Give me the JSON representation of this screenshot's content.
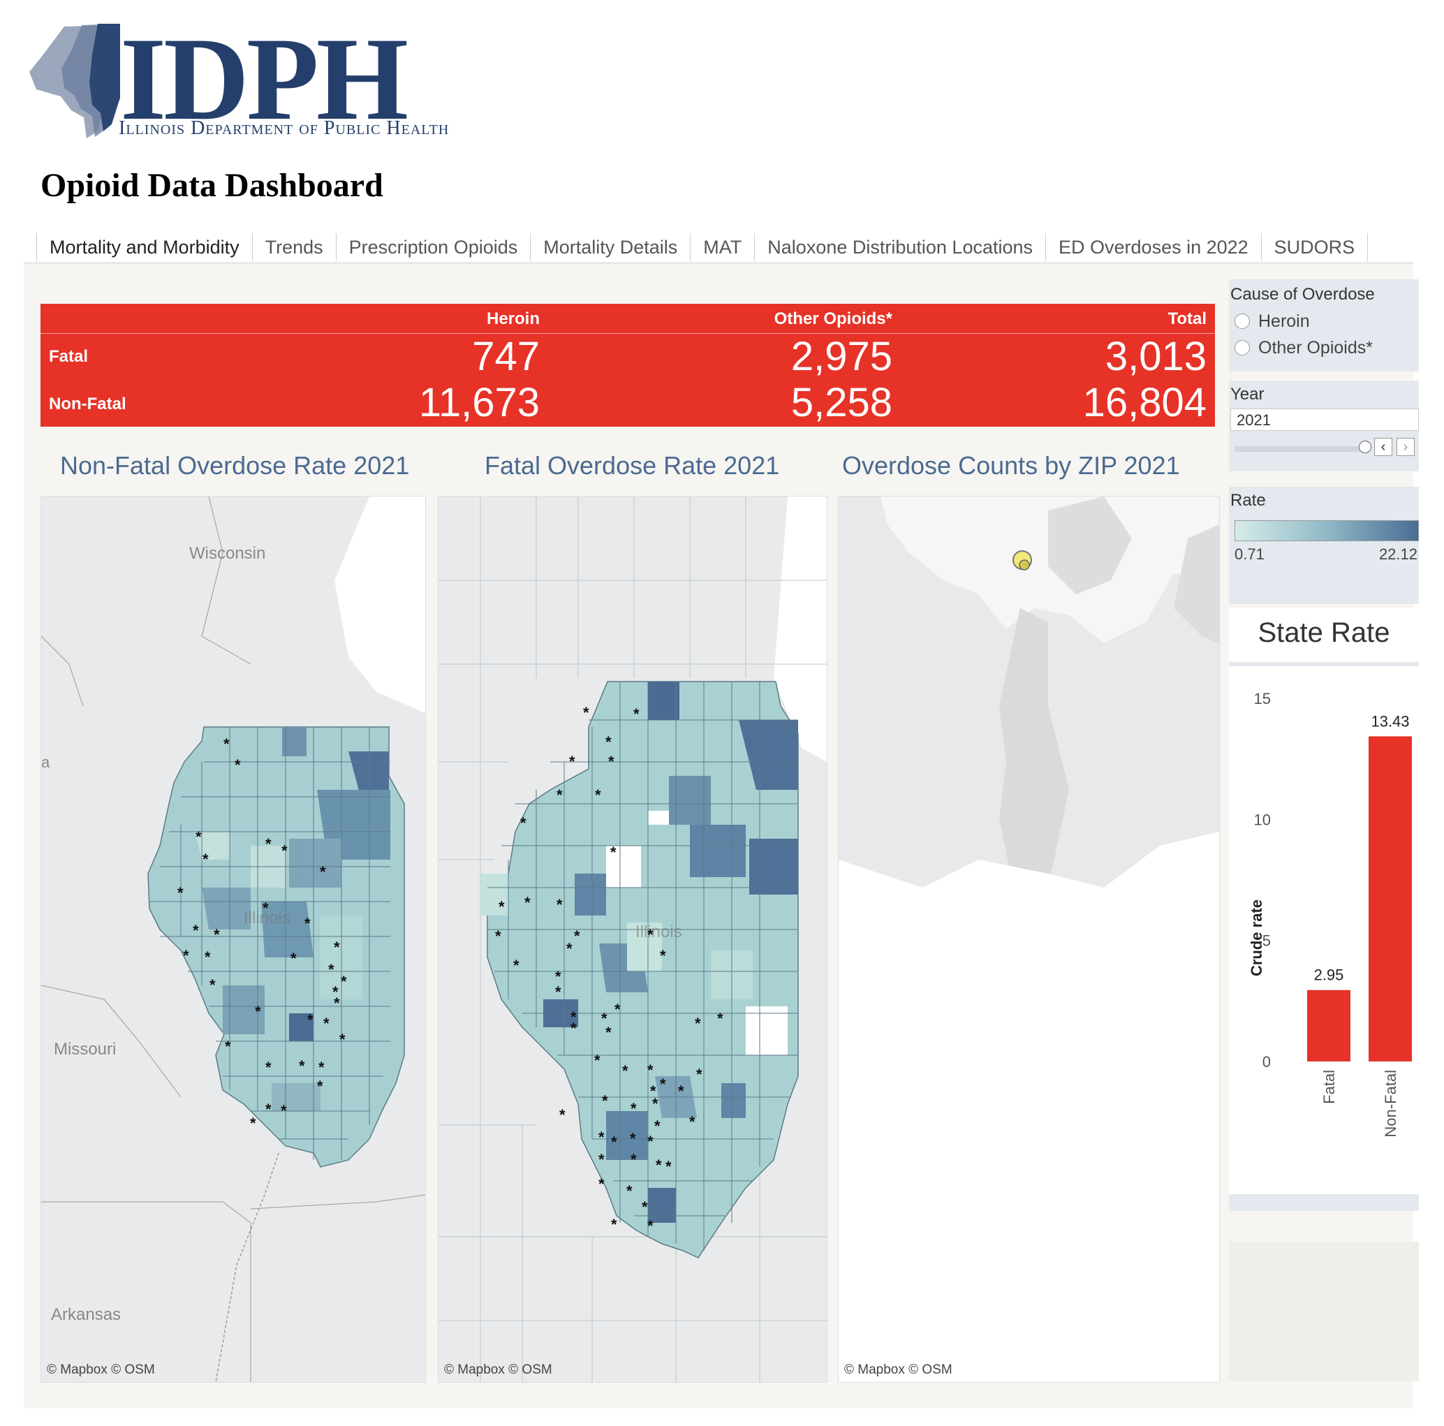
{
  "header": {
    "logo_text": "IDPH",
    "logo_subtitle": "Illinois Department of Public Health",
    "page_title": "Opioid Data Dashboard"
  },
  "tabs": [
    {
      "label": "Mortality and Morbidity",
      "active": true
    },
    {
      "label": "Trends"
    },
    {
      "label": "Prescription Opioids"
    },
    {
      "label": "Mortality Details"
    },
    {
      "label": "MAT"
    },
    {
      "label": "Naloxone Distribution Locations"
    },
    {
      "label": "ED Overdoses in 2022"
    },
    {
      "label": "SUDORS"
    }
  ],
  "kpi": {
    "columns": [
      "Heroin",
      "Other Opioids*",
      "Total"
    ],
    "rows": [
      {
        "label": "Fatal",
        "values": [
          "747",
          "2,975",
          "3,013"
        ]
      },
      {
        "label": "Non-Fatal",
        "values": [
          "11,673",
          "5,258",
          "16,804"
        ]
      }
    ],
    "color": "#e63227"
  },
  "panels": {
    "nonfatal_title": "Non-Fatal Overdose Rate 2021",
    "fatal_title": "Fatal Overdose Rate 2021",
    "zip_title": "Overdose Counts by ZIP 2021",
    "credit": "© Mapbox  © OSM",
    "map_labels": {
      "wisconsin": "Wisconsin",
      "missouri": "Missouri",
      "arkansas": "Arkansas",
      "illinois": "Illinois",
      "edge_a": "a"
    },
    "suppressed_marker": "*"
  },
  "filters": {
    "cause_label": "Cause of Overdose",
    "cause_options": [
      "Heroin",
      "Other Opioids*"
    ],
    "year_label": "Year",
    "year_value": "2021",
    "rate_label": "Rate",
    "rate_min": "0.71",
    "rate_max": "22.12",
    "rate_color_low": "#d6ece9",
    "rate_color_high": "#4a6d94"
  },
  "chart_data": {
    "type": "bar",
    "title": "State Rate",
    "categories": [
      "Fatal",
      "Non-Fatal"
    ],
    "values": [
      2.95,
      13.43
    ],
    "value_labels": [
      "2.95",
      "13.43"
    ],
    "ylabel": "Crude rate",
    "ylim": [
      0,
      15
    ],
    "yticks": [
      "0",
      "5",
      "10",
      "15"
    ],
    "color": "#e63227"
  }
}
